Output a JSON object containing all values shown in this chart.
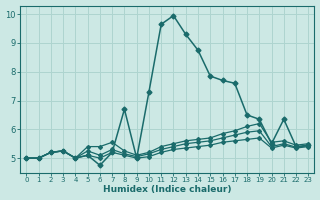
{
  "xlabel": "Humidex (Indice chaleur)",
  "ylabel": "",
  "xlim": [
    -0.5,
    23.5
  ],
  "ylim": [
    4.5,
    10.3
  ],
  "xticks": [
    0,
    1,
    2,
    3,
    4,
    5,
    6,
    7,
    8,
    9,
    10,
    11,
    12,
    13,
    14,
    15,
    16,
    17,
    18,
    19,
    20,
    21,
    22,
    23
  ],
  "yticks": [
    5,
    6,
    7,
    8,
    9,
    10
  ],
  "background_color": "#cce8e4",
  "grid_color": "#aed4cf",
  "line_color": "#1a6b6b",
  "series": [
    {
      "x": [
        0,
        1,
        2,
        3,
        4,
        5,
        6,
        7,
        8,
        9,
        10,
        11,
        12,
        13,
        14,
        15,
        16,
        17,
        18,
        19,
        20,
        21,
        22,
        23
      ],
      "y": [
        5.0,
        5.0,
        5.2,
        5.25,
        5.0,
        5.1,
        4.75,
        5.2,
        6.7,
        5.0,
        7.3,
        9.65,
        9.95,
        9.3,
        8.75,
        7.85,
        7.7,
        7.6,
        6.5,
        6.35,
        5.5,
        6.35,
        5.4,
        5.45
      ],
      "marker": "D",
      "markersize": 2.5,
      "linewidth": 1.1,
      "zorder": 5
    },
    {
      "x": [
        0,
        1,
        2,
        3,
        4,
        5,
        6,
        7,
        8,
        9,
        10,
        11,
        12,
        13,
        14,
        15,
        16,
        17,
        18,
        19,
        20,
        21,
        22,
        23
      ],
      "y": [
        5.0,
        5.0,
        5.2,
        5.25,
        5.0,
        5.4,
        5.4,
        5.55,
        5.25,
        5.1,
        5.2,
        5.4,
        5.5,
        5.6,
        5.65,
        5.7,
        5.85,
        5.95,
        6.1,
        6.2,
        5.55,
        5.6,
        5.45,
        5.5
      ],
      "marker": "D",
      "markersize": 2.0,
      "linewidth": 0.9,
      "zorder": 4
    },
    {
      "x": [
        0,
        1,
        2,
        3,
        4,
        5,
        6,
        7,
        8,
        9,
        10,
        11,
        12,
        13,
        14,
        15,
        16,
        17,
        18,
        19,
        20,
        21,
        22,
        23
      ],
      "y": [
        5.0,
        5.0,
        5.2,
        5.25,
        5.0,
        5.25,
        5.1,
        5.3,
        5.15,
        5.05,
        5.15,
        5.3,
        5.4,
        5.5,
        5.55,
        5.6,
        5.7,
        5.8,
        5.9,
        5.95,
        5.4,
        5.5,
        5.38,
        5.43
      ],
      "marker": "D",
      "markersize": 2.0,
      "linewidth": 0.9,
      "zorder": 3
    },
    {
      "x": [
        0,
        1,
        2,
        3,
        4,
        5,
        6,
        7,
        8,
        9,
        10,
        11,
        12,
        13,
        14,
        15,
        16,
        17,
        18,
        19,
        20,
        21,
        22,
        23
      ],
      "y": [
        5.0,
        5.0,
        5.2,
        5.25,
        5.0,
        5.1,
        5.0,
        5.2,
        5.1,
        5.0,
        5.05,
        5.2,
        5.3,
        5.35,
        5.4,
        5.45,
        5.55,
        5.6,
        5.65,
        5.7,
        5.35,
        5.45,
        5.35,
        5.4
      ],
      "marker": "D",
      "markersize": 2.0,
      "linewidth": 0.9,
      "zorder": 2
    }
  ]
}
